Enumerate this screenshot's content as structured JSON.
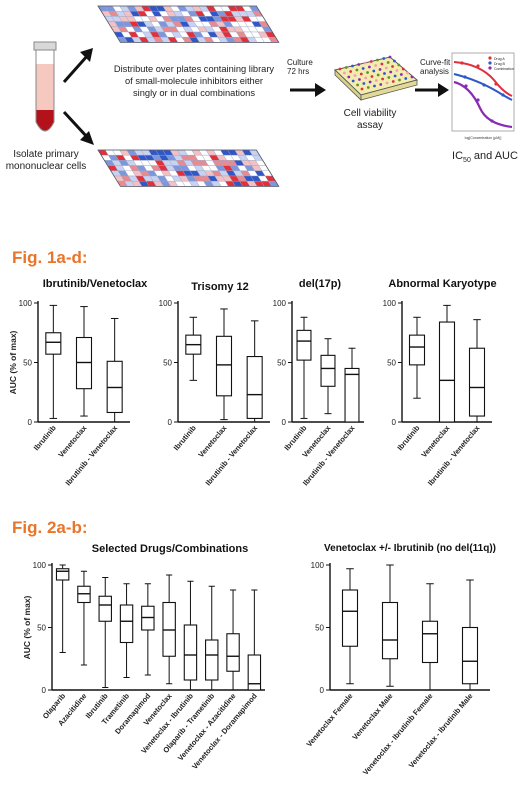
{
  "workflow": {
    "isolate_label": "Isolate primary mononuclear cells",
    "distribute_label": "Distribute over plates containing library of small-molecule inhibitors either singly or in dual combinations",
    "culture_label": "Culture 72 hrs",
    "viability_label": "Cell viability assay",
    "curvefit_label": "Curve-fit analysis",
    "result_label_prefix": "IC",
    "result_label_sub": "50",
    "result_label_suffix": " and AUC",
    "mini_legend": [
      "Drug A",
      "Drug B",
      "Combination"
    ],
    "mini_xlabel": "log[Concentration (µM)]",
    "colors": {
      "red": "#e0303a",
      "blue": "#2f57c8",
      "purple": "#8a2bb5",
      "plate_yellow": "#f3ecb0"
    }
  },
  "fig1": {
    "label": "Fig. 1a-d:",
    "ylabel": "AUC (% of max)",
    "panels": [
      {
        "title": "Ibrutinib/Venetoclax"
      },
      {
        "title": "Trisomy 12"
      },
      {
        "title": "del(17p)"
      },
      {
        "title": "Abnormal Karyotype"
      }
    ]
  },
  "fig2": {
    "label": "Fig. 2a-b:",
    "ylabel": "AUC (% of max)",
    "panels": [
      {
        "title": "Selected Drugs/Combinations"
      },
      {
        "title": "Venetoclax +/- Ibrutinib (no del(11q))"
      }
    ]
  },
  "chart_data": [
    {
      "type": "box",
      "title": "Ibrutinib/Venetoclax",
      "ylabel": "AUC (% of max)",
      "ylim": [
        0,
        100
      ],
      "yticks": [
        0,
        50,
        100
      ],
      "categories": [
        "Ibrutinib",
        "Venetoclax",
        "Ibrutinib - Venetoclax"
      ],
      "boxes": [
        {
          "min": 3,
          "q1": 57,
          "median": 67,
          "q3": 75,
          "max": 98
        },
        {
          "min": 5,
          "q1": 28,
          "median": 50,
          "q3": 71,
          "max": 97
        },
        {
          "min": 0,
          "q1": 8,
          "median": 29,
          "q3": 51,
          "max": 87
        }
      ]
    },
    {
      "type": "box",
      "title": "Trisomy 12",
      "ylabel": "",
      "ylim": [
        0,
        100
      ],
      "yticks": [
        0,
        50,
        100
      ],
      "categories": [
        "Ibrutinib",
        "Venetoclax",
        "Ibrutinib - Venetoclax"
      ],
      "boxes": [
        {
          "min": 35,
          "q1": 57,
          "median": 65,
          "q3": 73,
          "max": 88
        },
        {
          "min": 2,
          "q1": 22,
          "median": 48,
          "q3": 72,
          "max": 95
        },
        {
          "min": 0,
          "q1": 3,
          "median": 23,
          "q3": 55,
          "max": 85
        }
      ]
    },
    {
      "type": "box",
      "title": "del(17p)",
      "ylabel": "",
      "ylim": [
        0,
        100
      ],
      "yticks": [
        0,
        50,
        100
      ],
      "categories": [
        "Ibrutinib",
        "Venetoclax",
        "Ibrutinib - Venetoclax"
      ],
      "boxes": [
        {
          "min": 3,
          "q1": 52,
          "median": 68,
          "q3": 77,
          "max": 88
        },
        {
          "min": 7,
          "q1": 30,
          "median": 45,
          "q3": 56,
          "max": 70
        },
        {
          "min": 0,
          "q1": 0,
          "median": 40,
          "q3": 45,
          "max": 62
        }
      ]
    },
    {
      "type": "box",
      "title": "Abnormal Karyotype",
      "ylabel": "",
      "ylim": [
        0,
        100
      ],
      "yticks": [
        0,
        50,
        100
      ],
      "categories": [
        "Ibrutinib",
        "Venetoclax",
        "Ibrutinib - Venetoclax"
      ],
      "boxes": [
        {
          "min": 20,
          "q1": 48,
          "median": 63,
          "q3": 73,
          "max": 88
        },
        {
          "min": 0,
          "q1": 0,
          "median": 35,
          "q3": 84,
          "max": 98
        },
        {
          "min": 0,
          "q1": 5,
          "median": 29,
          "q3": 62,
          "max": 86
        }
      ]
    },
    {
      "type": "box",
      "title": "Selected Drugs/Combinations",
      "ylabel": "AUC (% of max)",
      "ylim": [
        0,
        100
      ],
      "yticks": [
        0,
        50,
        100
      ],
      "categories": [
        "Olaparib",
        "Azacitidine",
        "Ibrutinib",
        "Trametinib",
        "Doramapimod",
        "Venetoclax",
        "Venetoclax - Ibrutinib",
        "Olaparib - Trametinib",
        "Venetoclax - Azacitidine",
        "Venetoclax - Doramapimod"
      ],
      "boxes": [
        {
          "min": 30,
          "q1": 88,
          "median": 95,
          "q3": 97,
          "max": 100
        },
        {
          "min": 20,
          "q1": 70,
          "median": 77,
          "q3": 83,
          "max": 95
        },
        {
          "min": 2,
          "q1": 55,
          "median": 68,
          "q3": 75,
          "max": 90
        },
        {
          "min": 10,
          "q1": 38,
          "median": 55,
          "q3": 68,
          "max": 85
        },
        {
          "min": 12,
          "q1": 48,
          "median": 58,
          "q3": 67,
          "max": 85
        },
        {
          "min": 5,
          "q1": 27,
          "median": 48,
          "q3": 70,
          "max": 92
        },
        {
          "min": 0,
          "q1": 8,
          "median": 28,
          "q3": 52,
          "max": 87
        },
        {
          "min": 0,
          "q1": 8,
          "median": 28,
          "q3": 40,
          "max": 83
        },
        {
          "min": 0,
          "q1": 15,
          "median": 27,
          "q3": 45,
          "max": 80
        },
        {
          "min": 0,
          "q1": 0,
          "median": 5,
          "q3": 28,
          "max": 80
        }
      ]
    },
    {
      "type": "box",
      "title": "Venetoclax +/- Ibrutinib (no del(11q))",
      "ylabel": "",
      "ylim": [
        0,
        100
      ],
      "yticks": [
        0,
        50,
        100
      ],
      "categories": [
        "Venetoclax Female",
        "Venetoclax Male",
        "Venetoclax - Ibrutinib Female",
        "Venetoclax - Ibrutinib Male"
      ],
      "boxes": [
        {
          "min": 5,
          "q1": 35,
          "median": 63,
          "q3": 80,
          "max": 97
        },
        {
          "min": 3,
          "q1": 25,
          "median": 40,
          "q3": 70,
          "max": 100
        },
        {
          "min": 0,
          "q1": 22,
          "median": 45,
          "q3": 55,
          "max": 85
        },
        {
          "min": 0,
          "q1": 5,
          "median": 23,
          "q3": 50,
          "max": 88
        }
      ]
    }
  ]
}
